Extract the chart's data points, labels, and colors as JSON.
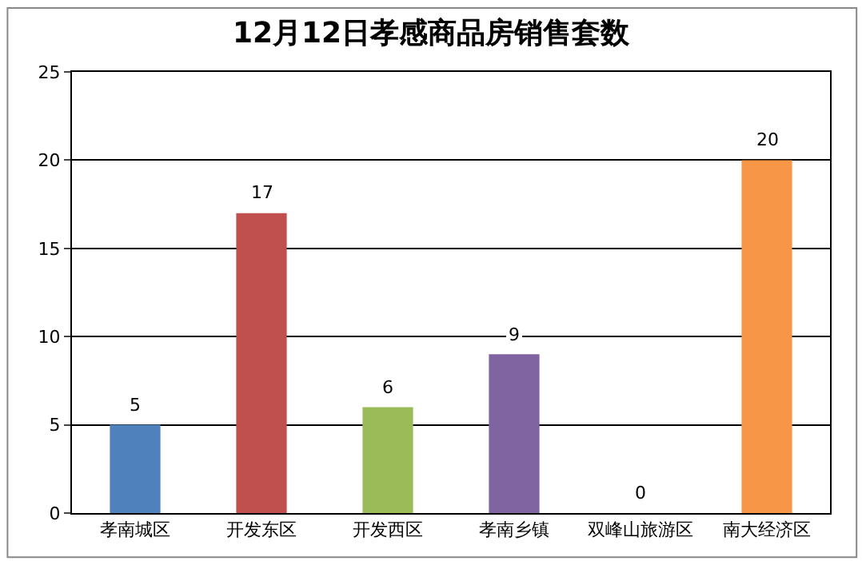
{
  "chart_data": {
    "type": "bar",
    "title": "12月12日孝感商品房销售套数",
    "categories": [
      "孝南城区",
      "开发东区",
      "开发西区",
      "孝南乡镇",
      "双峰山旅游区",
      "南大经济区"
    ],
    "values": [
      5,
      17,
      6,
      9,
      0,
      20
    ],
    "colors": [
      "#4f81bd",
      "#c0504d",
      "#9bbb59",
      "#8064a2",
      "#4bacc6",
      "#f79646"
    ],
    "ylim": [
      0,
      25
    ],
    "yticks": [
      0,
      5,
      10,
      15,
      20,
      25
    ],
    "grid": "y",
    "data_labels": true
  }
}
